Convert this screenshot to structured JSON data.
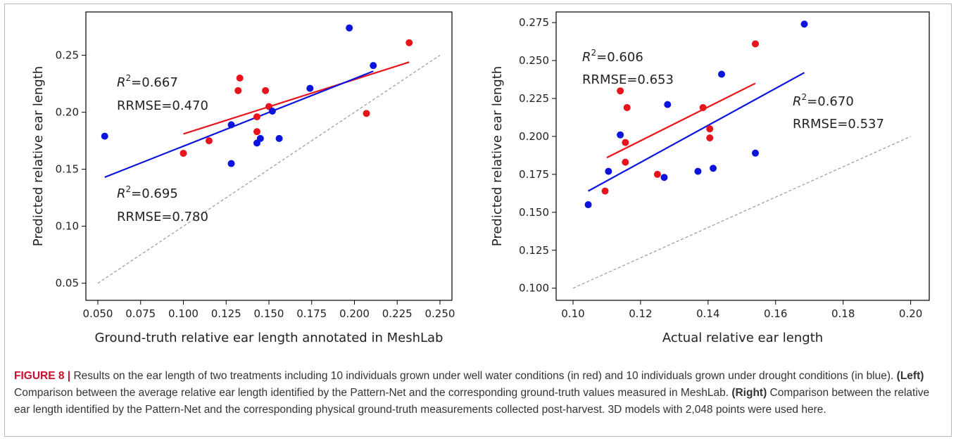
{
  "chart_data": [
    {
      "type": "scatter",
      "xlabel": "Ground-truth relative ear length annotated in MeshLab",
      "ylabel": "Predicted relative ear length",
      "xlim": [
        0.043,
        0.257
      ],
      "ylim": [
        0.035,
        0.288
      ],
      "xticks": [
        "0.050",
        "0.075",
        "0.100",
        "0.125",
        "0.150",
        "0.175",
        "0.200",
        "0.225",
        "0.250"
      ],
      "yticks": [
        "0.05",
        "0.10",
        "0.15",
        "0.20",
        "0.25"
      ],
      "grid": false,
      "reference_line": {
        "x": [
          0.05,
          0.25
        ],
        "y": [
          0.05,
          0.25
        ],
        "color": "#999999"
      },
      "series": [
        {
          "color": "#e8141c",
          "points": [
            [
              0.1,
              0.164
            ],
            [
              0.115,
              0.175
            ],
            [
              0.132,
              0.219
            ],
            [
              0.133,
              0.23
            ],
            [
              0.143,
              0.183
            ],
            [
              0.143,
              0.196
            ],
            [
              0.148,
              0.219
            ],
            [
              0.15,
              0.205
            ],
            [
              0.207,
              0.199
            ],
            [
              0.232,
              0.261
            ]
          ],
          "fit": {
            "x": [
              0.1,
              0.232
            ],
            "y": [
              0.181,
              0.244
            ]
          }
        },
        {
          "color": "#0a14dc",
          "points": [
            [
              0.054,
              0.179
            ],
            [
              0.128,
              0.155
            ],
            [
              0.128,
              0.189
            ],
            [
              0.143,
              0.173
            ],
            [
              0.145,
              0.177
            ],
            [
              0.152,
              0.201
            ],
            [
              0.156,
              0.177
            ],
            [
              0.174,
              0.221
            ],
            [
              0.197,
              0.274
            ],
            [
              0.211,
              0.241
            ]
          ],
          "fit": {
            "x": [
              0.054,
              0.211
            ],
            "y": [
              0.143,
              0.236
            ]
          }
        }
      ],
      "annotations": [
        {
          "r2_label": "R",
          "r2_sup": "2",
          "r2_value": "=0.667",
          "rrmse": "RRMSE=0.470"
        },
        {
          "r2_label": "R",
          "r2_sup": "2",
          "r2_value": "=0.695",
          "rrmse": "RRMSE=0.780"
        }
      ]
    },
    {
      "type": "scatter",
      "xlabel": "Actual relative ear length",
      "ylabel": "Predicted relative ear length",
      "xlim": [
        0.095,
        0.2055
      ],
      "ylim": [
        0.092,
        0.282
      ],
      "xticks": [
        "0.10",
        "0.12",
        "0.14",
        "0.16",
        "0.18",
        "0.20"
      ],
      "yticks": [
        "0.100",
        "0.125",
        "0.150",
        "0.175",
        "0.200",
        "0.225",
        "0.250",
        "0.275"
      ],
      "grid": false,
      "reference_line": {
        "x": [
          0.1,
          0.2
        ],
        "y": [
          0.1,
          0.2
        ],
        "color": "#999999"
      },
      "series": [
        {
          "color": "#e8141c",
          "points": [
            [
              0.1095,
              0.164
            ],
            [
              0.114,
              0.23
            ],
            [
              0.1155,
              0.183
            ],
            [
              0.1155,
              0.196
            ],
            [
              0.116,
              0.219
            ],
            [
              0.125,
              0.175
            ],
            [
              0.1385,
              0.219
            ],
            [
              0.1405,
              0.205
            ],
            [
              0.1405,
              0.199
            ],
            [
              0.154,
              0.261
            ]
          ],
          "fit": {
            "x": [
              0.11,
              0.154
            ],
            "y": [
              0.186,
              0.235
            ]
          }
        },
        {
          "color": "#0a14dc",
          "points": [
            [
              0.1045,
              0.155
            ],
            [
              0.1105,
              0.177
            ],
            [
              0.114,
              0.201
            ],
            [
              0.127,
              0.173
            ],
            [
              0.128,
              0.221
            ],
            [
              0.137,
              0.177
            ],
            [
              0.1415,
              0.179
            ],
            [
              0.144,
              0.241
            ],
            [
              0.154,
              0.189
            ],
            [
              0.1685,
              0.274
            ]
          ],
          "fit": {
            "x": [
              0.1045,
              0.1685
            ],
            "y": [
              0.164,
              0.242
            ]
          }
        }
      ],
      "annotations": [
        {
          "r2_label": "R",
          "r2_sup": "2",
          "r2_value": "=0.606",
          "rrmse": "RRMSE=0.653"
        },
        {
          "r2_label": "R",
          "r2_sup": "2",
          "r2_value": "=0.670",
          "rrmse": "RRMSE=0.537"
        }
      ]
    }
  ],
  "caption": {
    "label": "FIGURE 8 |",
    "text1": " Results on the ear length of two treatments including 10 individuals grown under well water conditions (in red) and 10 individuals grown under drought conditions (in blue). ",
    "left_label": "(Left)",
    "text2": " Comparison between the average relative ear length identified by the Pattern-Net and the corresponding ground-truth values measured in MeshLab. ",
    "right_label": "(Right)",
    "text3": " Comparison between the relative ear length identified by the Pattern-Net and the corresponding physical ground-truth measurements collected post-harvest. 3D models with 2,048 points were used here."
  }
}
